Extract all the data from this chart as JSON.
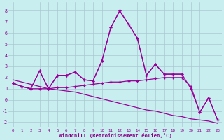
{
  "xlabel": "Windchill (Refroidissement éolien,°C)",
  "bg_color": "#c8eef0",
  "grid_color": "#a8c8d0",
  "line_color": "#990099",
  "xlim": [
    -0.5,
    23.5
  ],
  "ylim": [
    -2.5,
    8.8
  ],
  "yticks": [
    -2,
    -1,
    0,
    1,
    2,
    3,
    4,
    5,
    6,
    7,
    8
  ],
  "xticks": [
    0,
    1,
    2,
    3,
    4,
    5,
    6,
    7,
    8,
    9,
    10,
    11,
    12,
    13,
    14,
    15,
    16,
    17,
    18,
    19,
    20,
    21,
    22,
    23
  ],
  "line1_x": [
    0,
    1,
    2,
    3,
    4,
    5,
    6,
    7,
    8,
    9,
    10,
    11,
    12,
    13,
    14,
    15,
    16,
    17,
    18,
    19
  ],
  "line1_y": [
    1.5,
    1.2,
    1.0,
    2.6,
    1.0,
    2.2,
    2.2,
    2.5,
    1.8,
    1.7,
    3.5,
    6.5,
    8.0,
    6.8,
    5.5,
    2.2,
    3.2,
    2.3,
    2.3,
    2.3
  ],
  "line2_x": [
    0,
    1,
    2,
    3,
    4,
    5,
    6,
    7,
    8,
    9,
    10,
    11,
    12,
    13,
    14,
    15,
    16,
    17,
    18,
    19,
    20,
    21,
    22,
    23
  ],
  "line2_y": [
    1.5,
    1.2,
    1.0,
    2.6,
    1.0,
    2.2,
    2.2,
    2.5,
    1.8,
    1.7,
    3.5,
    6.5,
    8.0,
    6.8,
    5.5,
    2.2,
    3.2,
    2.3,
    2.3,
    2.3,
    1.0,
    -1.1,
    0.2,
    -1.8
  ],
  "line3_x": [
    0,
    1,
    2,
    3,
    4,
    5,
    6,
    7,
    8,
    9,
    10,
    11,
    12,
    13,
    14,
    15,
    16,
    17,
    18,
    19,
    20,
    21,
    22,
    23
  ],
  "line3_y": [
    1.5,
    1.2,
    1.0,
    1.0,
    1.0,
    1.1,
    1.1,
    1.2,
    1.3,
    1.4,
    1.5,
    1.6,
    1.6,
    1.7,
    1.7,
    1.8,
    1.9,
    2.0,
    2.0,
    2.0,
    1.2,
    -1.1,
    0.2,
    -1.8
  ],
  "line4_x": [
    0,
    1,
    2,
    3,
    4,
    5,
    6,
    7,
    8,
    9,
    10,
    11,
    12,
    13,
    14,
    15,
    16,
    17,
    18,
    19,
    20,
    21,
    22,
    23
  ],
  "line4_y": [
    1.8,
    1.6,
    1.4,
    1.2,
    1.0,
    0.9,
    0.8,
    0.7,
    0.5,
    0.3,
    0.1,
    -0.1,
    -0.3,
    -0.5,
    -0.7,
    -0.9,
    -1.0,
    -1.2,
    -1.4,
    -1.5,
    -1.7,
    -1.8,
    -1.9,
    -2.1
  ]
}
